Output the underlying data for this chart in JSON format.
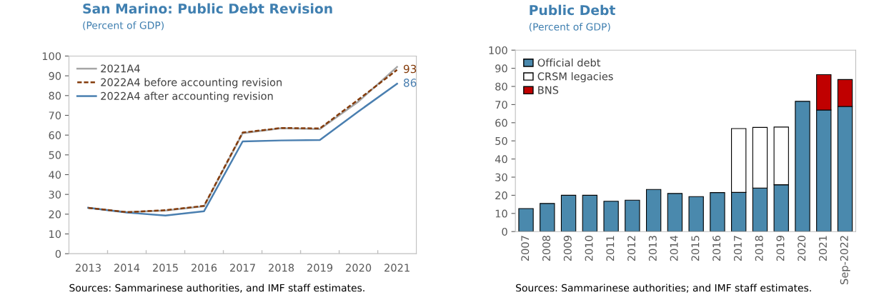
{
  "chart_data": [
    {
      "type": "line",
      "title": "San Marino: Public Debt Revision",
      "subtitle": "(Percent of GDP)",
      "categories": [
        "2013",
        "2014",
        "2015",
        "2016",
        "2017",
        "2018",
        "2019",
        "2020",
        "2021"
      ],
      "series": [
        {
          "name": "2021A4",
          "color": "#a6a6a6",
          "line_style": "solid",
          "values": [
            23.2,
            21,
            21.8,
            24,
            61,
            63.5,
            63,
            77,
            94.5
          ]
        },
        {
          "name": "2022A4 before accounting revision",
          "color": "#843c0c",
          "line_style": "dashed",
          "values": [
            23.2,
            21,
            22,
            24.2,
            61.3,
            63.6,
            63.4,
            78,
            93
          ],
          "value_labels": [
            null,
            null,
            null,
            null,
            null,
            null,
            null,
            null,
            "93"
          ]
        },
        {
          "name": "2022A4 after accounting revision",
          "color": "#4a7fb0",
          "line_style": "solid",
          "values": [
            23.2,
            20.8,
            19.3,
            21.5,
            56.8,
            57.3,
            57.5,
            72,
            86
          ],
          "value_labels": [
            null,
            null,
            null,
            null,
            null,
            null,
            null,
            null,
            "86"
          ]
        }
      ],
      "ylim": [
        0,
        100
      ],
      "yticks": [
        0,
        10,
        20,
        30,
        40,
        50,
        60,
        70,
        80,
        90,
        100
      ],
      "grid": false,
      "legend": "top left",
      "marker": "none",
      "annotations": [
        "Sources: Sammarinese authorities, and IMF staff estimates."
      ]
    },
    {
      "type": "bar",
      "stacked": true,
      "title": "Public Debt",
      "subtitle": "(Percent of GDP)",
      "categories": [
        "2007",
        "2008",
        "2009",
        "2010",
        "2011",
        "2012",
        "2013",
        "2014",
        "2015",
        "2016",
        "2017",
        "2018",
        "2019",
        "2020",
        "2021",
        "Sep-2022"
      ],
      "series": [
        {
          "name": "Official debt",
          "color": "#4a89ad",
          "values": [
            12.7,
            15.5,
            20,
            20,
            16.7,
            17.3,
            23.2,
            21,
            19.3,
            21.5,
            21.6,
            24,
            25.8,
            71.8,
            67,
            69
          ]
        },
        {
          "name": "CRSM legacies",
          "color": "#ffffff",
          "values": [
            null,
            null,
            null,
            null,
            null,
            null,
            null,
            null,
            null,
            null,
            35.2,
            33.4,
            31.8,
            null,
            null,
            null
          ]
        },
        {
          "name": "BNS",
          "color": "#c00000",
          "values": [
            null,
            null,
            null,
            null,
            null,
            null,
            null,
            null,
            null,
            null,
            null,
            null,
            null,
            null,
            19.5,
            14.8
          ]
        }
      ],
      "ylim": [
        0,
        100
      ],
      "yticks": [
        0,
        10,
        20,
        30,
        40,
        50,
        60,
        70,
        80,
        90,
        100
      ],
      "grid": false,
      "legend": "top left",
      "annotations": [
        "Sources: Sammarinese authorities; and IMF staff estimates."
      ]
    }
  ]
}
